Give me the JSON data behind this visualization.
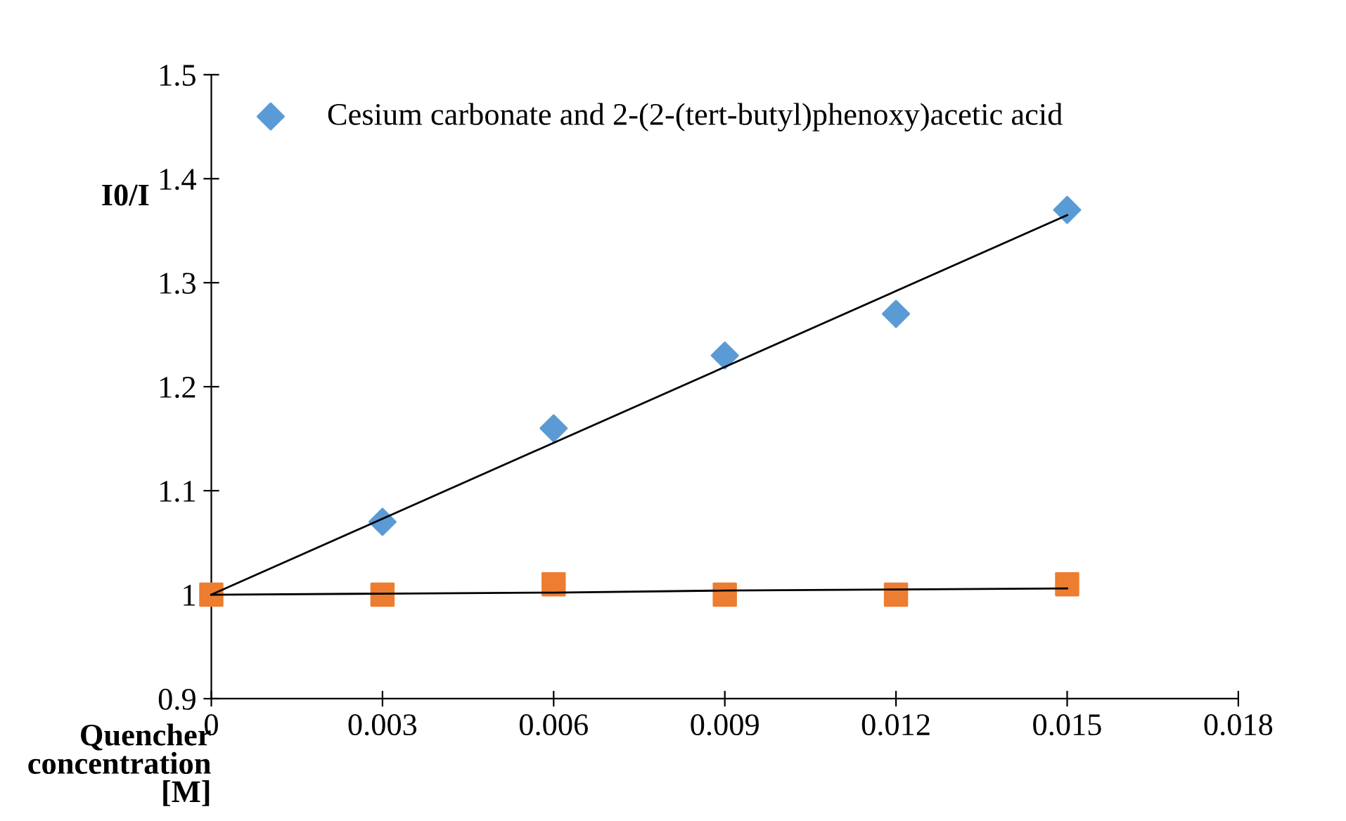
{
  "chart_data": {
    "type": "scatter",
    "xlabel": "Quencher\nconcentration\n[M]",
    "ylabel": "I0/I",
    "x": [
      0,
      0.003,
      0.006,
      0.009,
      0.012,
      0.015
    ],
    "series": [
      {
        "name": "Cesium carbonate and 2-(2-(tert-butyl)phenoxy)acetic acid",
        "color": "#5b9bd5",
        "marker": "diamond",
        "values": [
          null,
          1.07,
          1.16,
          1.23,
          1.27,
          1.37
        ]
      },
      {
        "color": "#ed7d31",
        "marker": "square",
        "values": [
          1.0,
          1.0,
          1.01,
          1.0,
          1.0,
          1.01
        ]
      },
      {
        "type": "line",
        "color": "#000000",
        "values": [
          1.0,
          1.073,
          1.146,
          1.219,
          1.292,
          1.365
        ]
      },
      {
        "type": "line",
        "color": "#000000",
        "values": [
          1.0,
          1.001,
          1.002,
          1.004,
          1.005,
          1.006
        ]
      }
    ],
    "xlim": [
      0,
      0.018
    ],
    "xticks": [
      0,
      0.003,
      0.006,
      0.009,
      0.012,
      0.015,
      0.018
    ],
    "ylim": [
      0.9,
      1.5
    ],
    "yticks": [
      0.9,
      1,
      1.1,
      1.2,
      1.3,
      1.4,
      1.5
    ],
    "grid": false,
    "legend": "top left"
  }
}
